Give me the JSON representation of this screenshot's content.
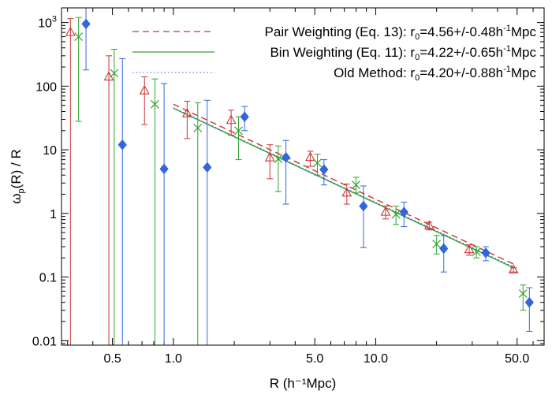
{
  "chart_data": {
    "type": "scatter",
    "x_scale": "log",
    "y_scale": "log",
    "xlim": [
      0.28,
      68
    ],
    "ylim": [
      0.0085,
      1700
    ],
    "xlabel": "R (h⁻¹Mpc)",
    "ylabel": "ωp(R) / R",
    "ylabel_main": "ω",
    "ylabel_sub": "p",
    "ylabel_rest": "(R) / R",
    "xticks": [
      {
        "value": 0.5,
        "label": "0.5"
      },
      {
        "value": 1.0,
        "label": "1.0"
      },
      {
        "value": 5.0,
        "label": "5.0"
      },
      {
        "value": 10.0,
        "label": "10.0"
      },
      {
        "value": 50.0,
        "label": "50.0"
      }
    ],
    "yticks": [
      {
        "value": 0.01,
        "label": "0.01"
      },
      {
        "value": 0.1,
        "label": "0.1"
      },
      {
        "value": 1,
        "label": "1"
      },
      {
        "value": 10,
        "label": "10"
      },
      {
        "value": 100,
        "label": "100"
      },
      {
        "value": 1000,
        "label": "10³",
        "base": "10",
        "exp": "3"
      }
    ],
    "legend": {
      "position": "top-right",
      "entries": [
        {
          "series": "pair",
          "text": "Pair Weighting (Eq. 13): r₀=4.56+/-0.48h⁻¹Mpc",
          "main": "Pair Weighting (Eq. 13): r",
          "sub": "0",
          "mid": "=4.56+/-0.48h",
          "sup": "-1",
          "end": "Mpc"
        },
        {
          "series": "bin",
          "text": "Bin Weighting (Eq. 11): r₀=4.22+/-0.65h⁻¹Mpc",
          "main": "Bin Weighting (Eq. 11): r",
          "sub": "0",
          "mid": "=4.22+/-0.65h",
          "sup": "-1",
          "end": "Mpc"
        },
        {
          "series": "old",
          "text": "Old Method: r₀=4.20+/-0.88h⁻¹Mpc",
          "main": "Old Method: r",
          "sub": "0",
          "mid": "=4.20+/-0.88h",
          "sup": "-1",
          "end": "Mpc"
        }
      ]
    },
    "series": [
      {
        "key": "pair",
        "color": "#cc3333",
        "marker": "triangle-open",
        "fit_style": "dashed",
        "fit": {
          "x": [
            1.0,
            48.0
          ],
          "y": [
            52,
            0.16
          ]
        },
        "points": [
          {
            "x": 0.31,
            "y": 700,
            "lo": 0.005,
            "hi": 1150
          },
          {
            "x": 0.48,
            "y": 140,
            "lo": 0.005,
            "hi": 300
          },
          {
            "x": 0.72,
            "y": 85,
            "lo": 25,
            "hi": 140
          },
          {
            "x": 1.17,
            "y": 37,
            "lo": 15,
            "hi": 58
          },
          {
            "x": 1.93,
            "y": 29,
            "lo": 17,
            "hi": 42
          },
          {
            "x": 3.0,
            "y": 7.5,
            "lo": 3.5,
            "hi": 12
          },
          {
            "x": 4.75,
            "y": 7.6,
            "lo": 5.5,
            "hi": 9.5
          },
          {
            "x": 7.2,
            "y": 2.1,
            "lo": 1.4,
            "hi": 2.9
          },
          {
            "x": 11.2,
            "y": 1.05,
            "lo": 0.82,
            "hi": 1.3
          },
          {
            "x": 18.4,
            "y": 0.64,
            "lo": 0.55,
            "hi": 0.73
          },
          {
            "x": 29.0,
            "y": 0.27,
            "lo": 0.22,
            "hi": 0.32
          },
          {
            "x": 48.0,
            "y": 0.13,
            "lo": 0.12,
            "hi": 0.14
          }
        ]
      },
      {
        "key": "bin",
        "color": "#33a033",
        "marker": "x",
        "fit_style": "solid",
        "fit": {
          "x": [
            1.0,
            48.0
          ],
          "y": [
            45,
            0.14
          ]
        },
        "points": [
          {
            "x": 0.34,
            "y": 600,
            "lo": 28,
            "hi": 1200
          },
          {
            "x": 0.51,
            "y": 160,
            "lo": 0.005,
            "hi": 380
          },
          {
            "x": 0.81,
            "y": 52,
            "lo": 0.005,
            "hi": 130
          },
          {
            "x": 1.32,
            "y": 22,
            "lo": 0.005,
            "hi": 55
          },
          {
            "x": 2.1,
            "y": 20,
            "lo": 7,
            "hi": 33
          },
          {
            "x": 3.3,
            "y": 7.2,
            "lo": 2.2,
            "hi": 11.5
          },
          {
            "x": 5.15,
            "y": 6.2,
            "lo": 4.0,
            "hi": 8.5
          },
          {
            "x": 8.0,
            "y": 2.8,
            "lo": 2.1,
            "hi": 3.7
          },
          {
            "x": 12.6,
            "y": 0.97,
            "lo": 0.67,
            "hi": 1.3
          },
          {
            "x": 20.0,
            "y": 0.33,
            "lo": 0.23,
            "hi": 0.45
          },
          {
            "x": 31.5,
            "y": 0.25,
            "lo": 0.2,
            "hi": 0.3
          },
          {
            "x": 53.5,
            "y": 0.055,
            "lo": 0.03,
            "hi": 0.075
          }
        ]
      },
      {
        "key": "old",
        "color": "#3366dd",
        "marker": "diamond-filled",
        "fit_style": "dotted",
        "fit": {
          "x": [
            1.0,
            48.0
          ],
          "y": [
            46,
            0.145
          ]
        },
        "points": [
          {
            "x": 0.37,
            "y": 950,
            "lo": 180,
            "hi": 1700
          },
          {
            "x": 0.56,
            "y": 12,
            "lo": 0.005,
            "hi": 270
          },
          {
            "x": 0.9,
            "y": 5.0,
            "lo": 0.005,
            "hi": 110
          },
          {
            "x": 1.47,
            "y": 5.3,
            "lo": 0.005,
            "hi": 60
          },
          {
            "x": 2.25,
            "y": 33,
            "lo": 20,
            "hi": 48
          },
          {
            "x": 3.6,
            "y": 7.6,
            "lo": 1.4,
            "hi": 14
          },
          {
            "x": 5.55,
            "y": 4.9,
            "lo": 2.8,
            "hi": 7.0
          },
          {
            "x": 8.7,
            "y": 1.3,
            "lo": 0.29,
            "hi": 2.7
          },
          {
            "x": 13.8,
            "y": 1.05,
            "lo": 0.62,
            "hi": 1.5
          },
          {
            "x": 21.7,
            "y": 0.28,
            "lo": 0.12,
            "hi": 0.45
          },
          {
            "x": 35.0,
            "y": 0.24,
            "lo": 0.18,
            "hi": 0.3
          },
          {
            "x": 57.5,
            "y": 0.04,
            "lo": 0.014,
            "hi": 0.068
          }
        ]
      }
    ]
  }
}
